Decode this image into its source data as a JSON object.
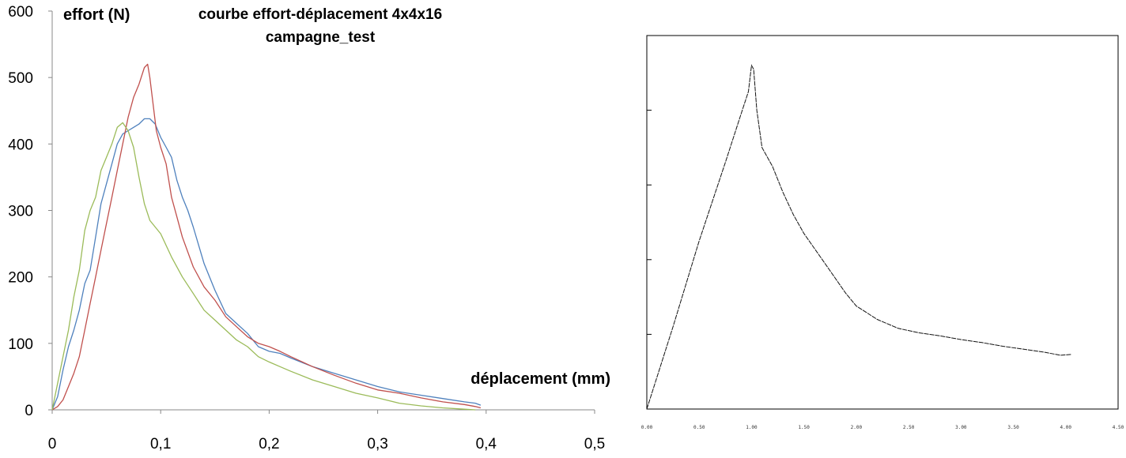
{
  "chart_data": [
    {
      "type": "line",
      "title": "courbe effort-déplacement 4x4x16",
      "subtitle": "campagne_test",
      "xlabel": "déplacement (mm)",
      "ylabel": "effort (N)",
      "xlim": [
        0,
        0.5
      ],
      "ylim": [
        0,
        600
      ],
      "x_ticks": [
        "0",
        "0,1",
        "0,2",
        "0,3",
        "0,4",
        "0,5"
      ],
      "y_ticks": [
        "0",
        "100",
        "200",
        "300",
        "400",
        "500",
        "600"
      ],
      "grid": false,
      "legend": false,
      "series": [
        {
          "color": "#4f81bd",
          "points": [
            [
              0,
              0
            ],
            [
              0.005,
              20
            ],
            [
              0.01,
              60
            ],
            [
              0.015,
              95
            ],
            [
              0.02,
              120
            ],
            [
              0.025,
              150
            ],
            [
              0.03,
              190
            ],
            [
              0.035,
              210
            ],
            [
              0.04,
              260
            ],
            [
              0.045,
              310
            ],
            [
              0.05,
              340
            ],
            [
              0.055,
              370
            ],
            [
              0.06,
              400
            ],
            [
              0.065,
              415
            ],
            [
              0.07,
              420
            ],
            [
              0.075,
              425
            ],
            [
              0.08,
              430
            ],
            [
              0.085,
              438
            ],
            [
              0.09,
              438
            ],
            [
              0.095,
              430
            ],
            [
              0.1,
              410
            ],
            [
              0.105,
              395
            ],
            [
              0.11,
              380
            ],
            [
              0.115,
              345
            ],
            [
              0.12,
              320
            ],
            [
              0.125,
              300
            ],
            [
              0.13,
              275
            ],
            [
              0.14,
              220
            ],
            [
              0.15,
              180
            ],
            [
              0.16,
              145
            ],
            [
              0.17,
              130
            ],
            [
              0.18,
              115
            ],
            [
              0.19,
              95
            ],
            [
              0.2,
              88
            ],
            [
              0.21,
              85
            ],
            [
              0.22,
              78
            ],
            [
              0.24,
              65
            ],
            [
              0.26,
              55
            ],
            [
              0.28,
              45
            ],
            [
              0.3,
              35
            ],
            [
              0.32,
              27
            ],
            [
              0.34,
              22
            ],
            [
              0.36,
              17
            ],
            [
              0.38,
              12
            ],
            [
              0.39,
              10
            ],
            [
              0.395,
              7
            ]
          ]
        },
        {
          "color": "#c0504d",
          "points": [
            [
              0,
              0
            ],
            [
              0.005,
              5
            ],
            [
              0.01,
              15
            ],
            [
              0.015,
              35
            ],
            [
              0.02,
              55
            ],
            [
              0.025,
              80
            ],
            [
              0.03,
              120
            ],
            [
              0.035,
              160
            ],
            [
              0.04,
              200
            ],
            [
              0.045,
              240
            ],
            [
              0.05,
              280
            ],
            [
              0.055,
              320
            ],
            [
              0.06,
              360
            ],
            [
              0.065,
              400
            ],
            [
              0.07,
              440
            ],
            [
              0.075,
              470
            ],
            [
              0.08,
              490
            ],
            [
              0.085,
              515
            ],
            [
              0.088,
              520
            ],
            [
              0.09,
              500
            ],
            [
              0.093,
              460
            ],
            [
              0.096,
              420
            ],
            [
              0.1,
              395
            ],
            [
              0.105,
              370
            ],
            [
              0.11,
              320
            ],
            [
              0.115,
              290
            ],
            [
              0.12,
              260
            ],
            [
              0.13,
              215
            ],
            [
              0.14,
              185
            ],
            [
              0.15,
              165
            ],
            [
              0.16,
              140
            ],
            [
              0.17,
              125
            ],
            [
              0.18,
              110
            ],
            [
              0.19,
              100
            ],
            [
              0.2,
              95
            ],
            [
              0.21,
              88
            ],
            [
              0.22,
              80
            ],
            [
              0.24,
              65
            ],
            [
              0.26,
              52
            ],
            [
              0.28,
              40
            ],
            [
              0.3,
              30
            ],
            [
              0.32,
              25
            ],
            [
              0.34,
              18
            ],
            [
              0.36,
              12
            ],
            [
              0.38,
              8
            ],
            [
              0.39,
              5
            ],
            [
              0.395,
              3
            ]
          ]
        },
        {
          "color": "#9bbb59",
          "points": [
            [
              0,
              0
            ],
            [
              0.005,
              40
            ],
            [
              0.01,
              80
            ],
            [
              0.015,
              120
            ],
            [
              0.02,
              170
            ],
            [
              0.025,
              210
            ],
            [
              0.03,
              270
            ],
            [
              0.035,
              300
            ],
            [
              0.04,
              320
            ],
            [
              0.045,
              360
            ],
            [
              0.05,
              380
            ],
            [
              0.055,
              400
            ],
            [
              0.06,
              425
            ],
            [
              0.065,
              432
            ],
            [
              0.07,
              420
            ],
            [
              0.075,
              395
            ],
            [
              0.08,
              350
            ],
            [
              0.085,
              310
            ],
            [
              0.09,
              285
            ],
            [
              0.1,
              265
            ],
            [
              0.11,
              230
            ],
            [
              0.12,
              200
            ],
            [
              0.13,
              175
            ],
            [
              0.14,
              150
            ],
            [
              0.15,
              135
            ],
            [
              0.16,
              120
            ],
            [
              0.17,
              105
            ],
            [
              0.18,
              95
            ],
            [
              0.19,
              80
            ],
            [
              0.2,
              72
            ],
            [
              0.21,
              65
            ],
            [
              0.22,
              58
            ],
            [
              0.24,
              45
            ],
            [
              0.26,
              35
            ],
            [
              0.28,
              25
            ],
            [
              0.3,
              18
            ],
            [
              0.32,
              10
            ],
            [
              0.34,
              6
            ],
            [
              0.36,
              3
            ],
            [
              0.38,
              1
            ],
            [
              0.39,
              0
            ]
          ]
        }
      ]
    },
    {
      "type": "line",
      "xlim": [
        0,
        4.5
      ],
      "ylim": [
        0,
        5
      ],
      "x_ticks": [
        "0.00",
        "0.50",
        "1.00",
        "1.50",
        "2.00",
        "2.50",
        "3.00",
        "3.50",
        "4.00",
        "4.50"
      ],
      "grid": false,
      "legend": false,
      "series": [
        {
          "color": "#111111",
          "points": [
            [
              0,
              0
            ],
            [
              0.25,
              1.1
            ],
            [
              0.5,
              2.25
            ],
            [
              0.75,
              3.3
            ],
            [
              0.9,
              3.95
            ],
            [
              0.97,
              4.25
            ],
            [
              1.0,
              4.6
            ],
            [
              1.02,
              4.55
            ],
            [
              1.05,
              4.0
            ],
            [
              1.1,
              3.5
            ],
            [
              1.2,
              3.25
            ],
            [
              1.3,
              2.9
            ],
            [
              1.4,
              2.6
            ],
            [
              1.5,
              2.35
            ],
            [
              1.7,
              1.95
            ],
            [
              1.9,
              1.55
            ],
            [
              2.0,
              1.38
            ],
            [
              2.2,
              1.2
            ],
            [
              2.4,
              1.08
            ],
            [
              2.6,
              1.02
            ],
            [
              2.8,
              0.98
            ],
            [
              3.0,
              0.93
            ],
            [
              3.2,
              0.89
            ],
            [
              3.4,
              0.84
            ],
            [
              3.6,
              0.8
            ],
            [
              3.8,
              0.76
            ],
            [
              3.95,
              0.72
            ],
            [
              4.05,
              0.73
            ]
          ]
        }
      ]
    }
  ]
}
